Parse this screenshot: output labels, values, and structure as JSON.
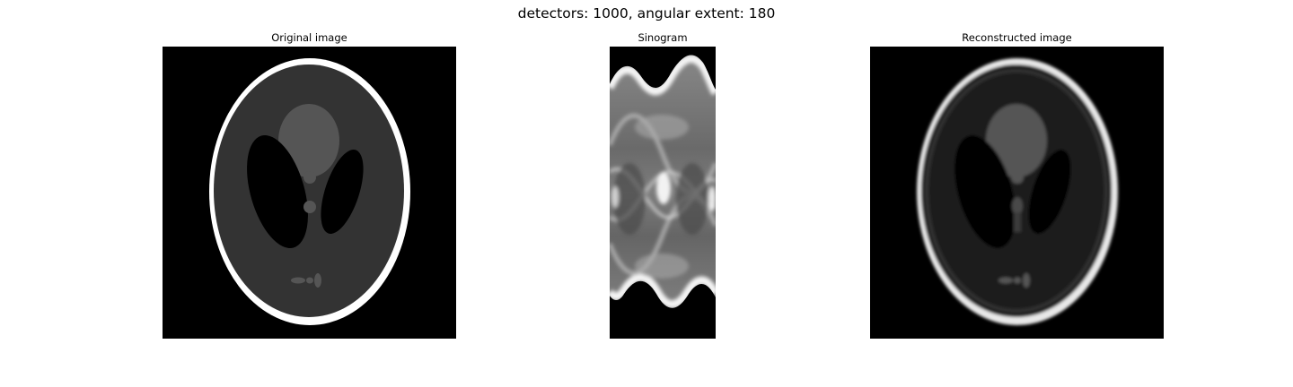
{
  "figure": {
    "suptitle": "detectors: 1000, angular extent: 180"
  },
  "panels": [
    {
      "title": "Original image"
    },
    {
      "title": "Sinogram"
    },
    {
      "title": "Reconstructed image"
    }
  ]
}
